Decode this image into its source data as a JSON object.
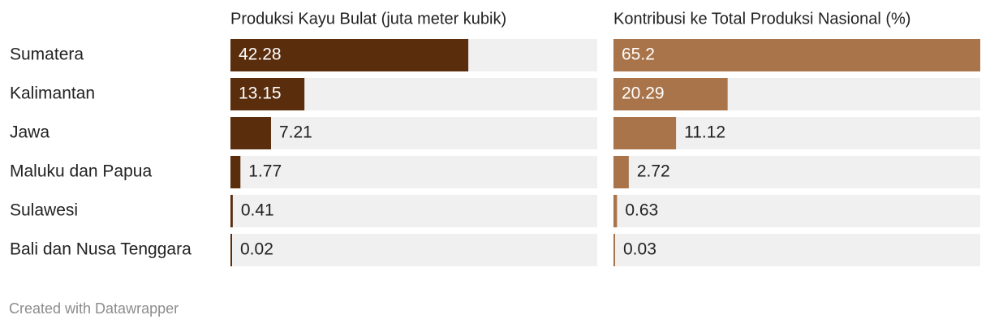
{
  "chart_data": {
    "type": "split-bar",
    "categories": [
      "Sumatera",
      "Kalimantan",
      "Jawa",
      "Maluku dan Papua",
      "Sulawesi",
      "Bali dan Nusa Tenggara"
    ],
    "xlim": [
      0,
      65.2
    ],
    "series": [
      {
        "name": "Produksi Kayu Bulat (juta meter kubik)",
        "color": "#5a2d0c",
        "values": [
          42.28,
          13.15,
          7.21,
          1.77,
          0.41,
          0.02
        ]
      },
      {
        "name": "Kontribusi ke Total Produksi Nasional (%)",
        "color": "#a9744a",
        "values": [
          65.2,
          20.29,
          11.12,
          2.72,
          0.63,
          0.03
        ]
      }
    ],
    "credit": "Created with Datawrapper"
  }
}
